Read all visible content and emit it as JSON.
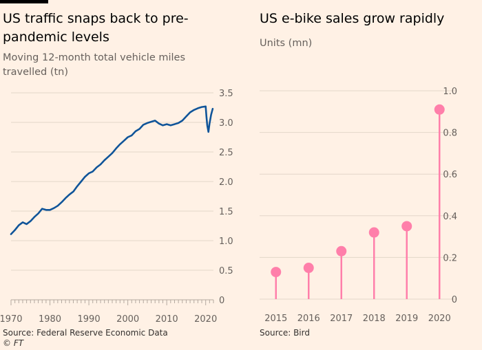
{
  "left_chart": {
    "title": "US traffic snaps back to pre-pandemic levels",
    "subtitle": "Moving 12-month total vehicle miles travelled (tn)",
    "source": "Source: Federal Reserve Economic Data",
    "credit": "© FT",
    "series_color": "#0f5499",
    "chart_data": {
      "type": "line",
      "title": "US traffic snaps back to pre-pandemic levels",
      "ylabel": "Moving 12-month total vehicle miles travelled (tn)",
      "xlim": [
        1970,
        2022
      ],
      "ylim": [
        0,
        3.5
      ],
      "yticks": [
        0,
        0.5,
        1.0,
        1.5,
        2.0,
        2.5,
        3.0,
        3.5
      ],
      "ytick_labels": [
        "0",
        "0.5",
        "1.0",
        "1.5",
        "2.0",
        "2.5",
        "3.0",
        "3.5"
      ],
      "xticks": [
        1970,
        1980,
        1990,
        2000,
        2010,
        2020
      ],
      "xtick_labels": [
        "1970",
        "1980",
        "1990",
        "2000",
        "2010",
        "2020"
      ],
      "x": [
        1970,
        1971,
        1972,
        1973,
        1974,
        1975,
        1976,
        1977,
        1978,
        1979,
        1980,
        1981,
        1982,
        1983,
        1984,
        1985,
        1986,
        1987,
        1988,
        1989,
        1990,
        1991,
        1992,
        1993,
        1994,
        1995,
        1996,
        1997,
        1998,
        1999,
        2000,
        2001,
        2002,
        2003,
        2004,
        2005,
        2006,
        2007,
        2008,
        2009,
        2010,
        2011,
        2012,
        2013,
        2014,
        2015,
        2016,
        2017,
        2018,
        2019,
        2020.0,
        2020.2,
        2020.4,
        2020.7,
        2021.0,
        2021.4,
        2021.8
      ],
      "y": [
        1.11,
        1.18,
        1.26,
        1.31,
        1.28,
        1.33,
        1.4,
        1.46,
        1.54,
        1.52,
        1.52,
        1.55,
        1.59,
        1.65,
        1.72,
        1.78,
        1.83,
        1.92,
        2.0,
        2.08,
        2.14,
        2.17,
        2.24,
        2.29,
        2.36,
        2.42,
        2.48,
        2.56,
        2.63,
        2.69,
        2.75,
        2.78,
        2.85,
        2.89,
        2.96,
        2.99,
        3.01,
        3.03,
        2.98,
        2.95,
        2.97,
        2.95,
        2.97,
        2.99,
        3.03,
        3.1,
        3.17,
        3.21,
        3.24,
        3.26,
        3.27,
        3.1,
        2.95,
        2.84,
        2.98,
        3.13,
        3.23
      ]
    }
  },
  "right_chart": {
    "title": "US e-bike sales grow rapidly",
    "subtitle": "Units (mn)",
    "source": "Source: Bird",
    "series_color": "#ff7faa",
    "chart_data": {
      "type": "lollipop",
      "title": "US e-bike sales grow rapidly",
      "ylabel": "Units (mn)",
      "categories": [
        "2015",
        "2016",
        "2017",
        "2018",
        "2019",
        "2020"
      ],
      "values": [
        0.13,
        0.15,
        0.23,
        0.32,
        0.35,
        0.91
      ],
      "ylim": [
        0,
        1.0
      ],
      "yticks": [
        0,
        0.2,
        0.4,
        0.6,
        0.8,
        1.0
      ],
      "ytick_labels": [
        "0",
        "0.2",
        "0.4",
        "0.6",
        "0.8",
        "1.0"
      ]
    }
  }
}
